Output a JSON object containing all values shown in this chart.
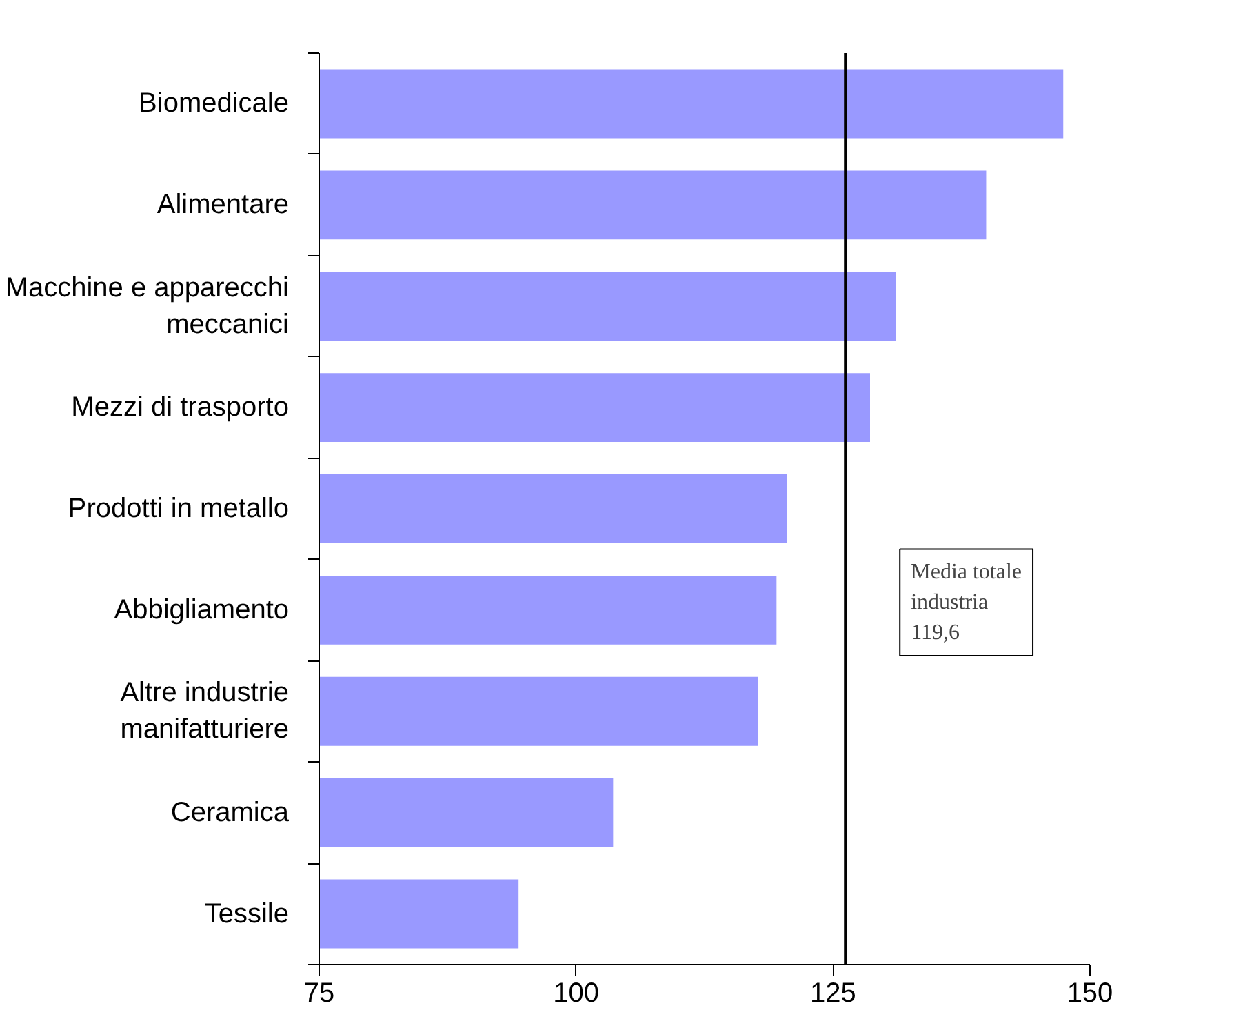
{
  "chart_data": {
    "type": "bar",
    "orientation": "horizontal",
    "categories": [
      "Biomedicale",
      "Alimentare",
      "Macchine e apparecchi meccanici",
      "Mezzi di trasporto",
      "Prodotti in metallo",
      "Abbigliamento",
      "Altre industrie manifatturiere",
      "Ceramica",
      "Tessile"
    ],
    "values": [
      147.4,
      139.9,
      131.1,
      128.6,
      120.5,
      119.5,
      117.7,
      103.6,
      94.4
    ],
    "color": "#9999ff",
    "xlim": [
      75,
      150
    ],
    "xticks": [
      75,
      100,
      125,
      150
    ],
    "grid": false,
    "ref_lines": [
      {
        "axis": "x",
        "value": 126.2,
        "color": "#000000"
      }
    ],
    "annotations": [
      "Media totale\nindustria\n       119,6"
    ]
  }
}
